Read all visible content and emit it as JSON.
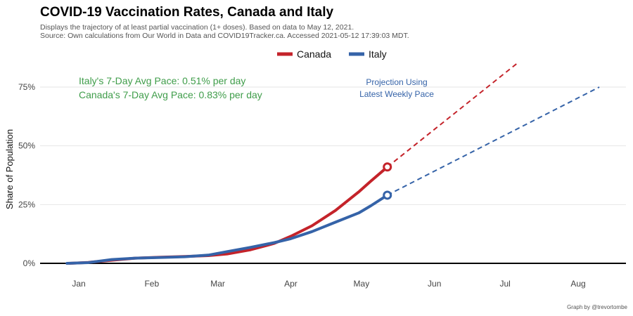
{
  "title": "COVID-19 Vaccination Rates, Canada and Italy",
  "subtitle_line1": "Displays the trajectory of at least partial vaccination (1+ doses). Based on data to May 12, 2021.",
  "subtitle_line2": "Source: Own calculations from Our World in Data and COVID19Tracker.ca. Accessed 2021-05-12 17:39:03 MDT.",
  "caption": "Graph by @trevortombe",
  "annotations": {
    "italy_pace": "Italy's 7-Day Avg Pace: 0.51% per day",
    "canada_pace": "Canada's 7-Day Avg Pace: 0.83% per day",
    "projection_line1": "Projection Using",
    "projection_line2": "Latest Weekly Pace"
  },
  "colors": {
    "canada": "#c4232a",
    "italy": "#3563a8",
    "annotation_green": "#3f9d4a",
    "annotation_blue": "#3563a8"
  },
  "chart_data": {
    "type": "line",
    "title": "COVID-19 Vaccination Rates, Canada and Italy",
    "xlabel": "",
    "ylabel": "Share of Population",
    "x_ticks": [
      "Jan",
      "Feb",
      "Mar",
      "Apr",
      "May",
      "Jun",
      "Jul",
      "Aug"
    ],
    "y_ticks": [
      "0%",
      "25%",
      "50%",
      "75%"
    ],
    "y_tick_values": [
      0,
      25,
      50,
      75
    ],
    "ylim": [
      -2,
      82
    ],
    "grid": "horizontal",
    "legend": "top-center",
    "series": [
      {
        "name": "Canada",
        "color": "#c4232a",
        "x": [
          "2020-12-28",
          "2021-01-05",
          "2021-01-15",
          "2021-01-25",
          "2021-02-05",
          "2021-02-15",
          "2021-02-25",
          "2021-03-05",
          "2021-03-15",
          "2021-03-25",
          "2021-04-01",
          "2021-04-10",
          "2021-04-20",
          "2021-04-30",
          "2021-05-05",
          "2021-05-12"
        ],
        "values": [
          0,
          0.4,
          1.3,
          2.2,
          2.6,
          2.9,
          3.3,
          4.0,
          5.8,
          8.5,
          11.5,
          16.0,
          22.5,
          30.5,
          35.0,
          41.0
        ],
        "projection": {
          "x": [
            "2021-05-12",
            "2021-07-06"
          ],
          "values": [
            41.0,
            85.0
          ]
        }
      },
      {
        "name": "Italy",
        "color": "#3563a8",
        "x": [
          "2020-12-27",
          "2021-01-05",
          "2021-01-15",
          "2021-01-25",
          "2021-02-05",
          "2021-02-15",
          "2021-02-25",
          "2021-03-05",
          "2021-03-15",
          "2021-03-25",
          "2021-04-01",
          "2021-04-10",
          "2021-04-20",
          "2021-04-30",
          "2021-05-05",
          "2021-05-12"
        ],
        "values": [
          0,
          0.3,
          1.6,
          2.2,
          2.5,
          2.8,
          3.5,
          5.0,
          6.8,
          8.8,
          10.5,
          13.5,
          17.5,
          21.5,
          24.5,
          29.0
        ],
        "projection": {
          "x": [
            "2021-05-12",
            "2021-08-10"
          ],
          "values": [
            29.0,
            75.0
          ]
        }
      }
    ]
  }
}
